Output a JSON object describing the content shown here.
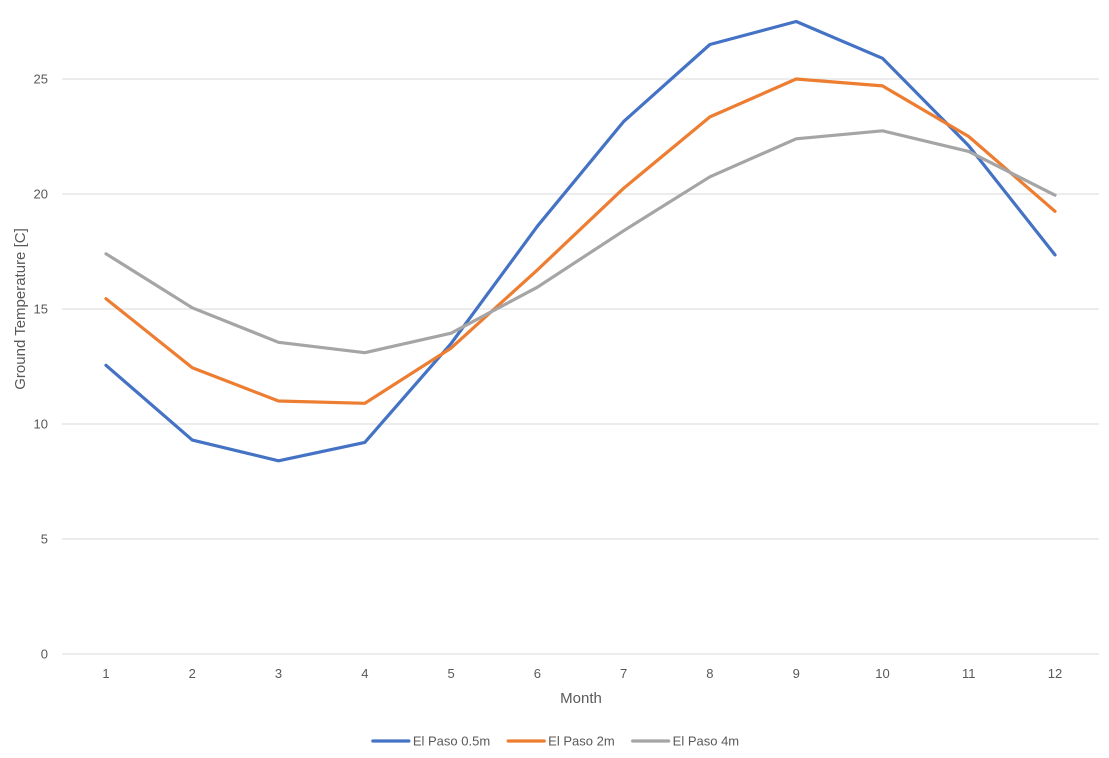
{
  "chart_data": {
    "type": "line",
    "title": "",
    "xlabel": "Month",
    "ylabel": "Ground Temperature [C]",
    "x": [
      1,
      2,
      3,
      4,
      5,
      6,
      7,
      8,
      9,
      10,
      11,
      12
    ],
    "ylim": [
      0,
      27.5
    ],
    "yticks": [
      0,
      5,
      10,
      15,
      20,
      25
    ],
    "grid": true,
    "legend_position": "bottom",
    "series": [
      {
        "name": "El Paso 0.5m",
        "color": "#4472c4",
        "values": [
          12.55,
          9.3,
          8.4,
          9.2,
          13.5,
          18.6,
          23.15,
          26.5,
          27.5,
          25.9,
          22.1,
          17.35
        ]
      },
      {
        "name": "El Paso 2m",
        "color": "#ed7d31",
        "values": [
          15.45,
          12.45,
          11.0,
          10.9,
          13.3,
          16.7,
          20.25,
          23.35,
          25.0,
          24.7,
          22.5,
          19.25
        ]
      },
      {
        "name": "El Paso 4m",
        "color": "#a5a5a5",
        "values": [
          17.4,
          15.05,
          13.55,
          13.1,
          13.95,
          15.95,
          18.4,
          20.75,
          22.4,
          22.75,
          21.85,
          19.95
        ]
      }
    ]
  }
}
